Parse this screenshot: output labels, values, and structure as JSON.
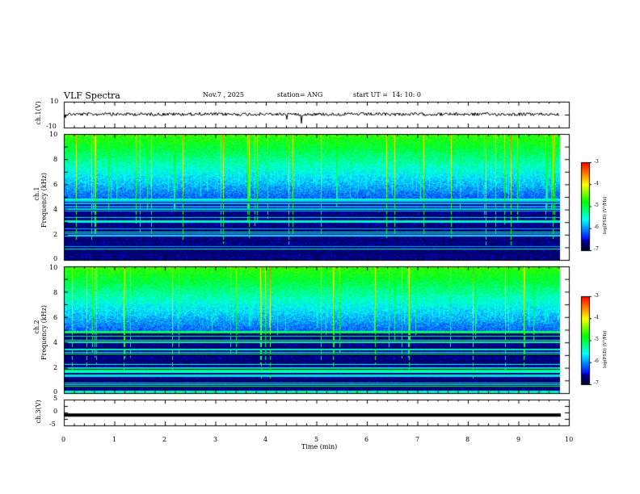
{
  "header": {
    "title": "VLF Spectra",
    "date": "Nov.7 , 2025",
    "station": "station= ANG",
    "start_ut": "start UT =  14: 10: 0"
  },
  "chart_data": [
    {
      "type": "line",
      "name": "ch1-waveform",
      "ylabel": "ch.1(V)",
      "ylim": [
        -10,
        10
      ],
      "yticks": [
        "10",
        "-10"
      ],
      "xlim": [
        0,
        10
      ],
      "baseline_v": 0,
      "noise_amplitude_v": 1
    },
    {
      "type": "heatmap",
      "name": "ch1-spectrogram",
      "ylabel_top": "ch.1",
      "ylabel": "Frequency (kHz)",
      "ylim": [
        0,
        10
      ],
      "yticks": [
        "0",
        "2",
        "4",
        "6",
        "8",
        "10"
      ],
      "xlim": [
        0,
        10
      ],
      "colorbar": {
        "label": "log(PSD) (V²/Hz)",
        "range": [
          -7,
          -3
        ],
        "ticks": [
          "-3",
          "-4",
          "-5",
          "-6",
          "-7"
        ]
      }
    },
    {
      "type": "heatmap",
      "name": "ch2-spectrogram",
      "ylabel_top": "ch.2",
      "ylabel": "Frequency (kHz)",
      "ylim": [
        0,
        10
      ],
      "yticks": [
        "0",
        "2",
        "4",
        "6",
        "8",
        "10"
      ],
      "xlim": [
        0,
        10
      ],
      "colorbar": {
        "label": "log(PSD) (V²/Hz)",
        "range": [
          -7,
          -3
        ],
        "ticks": [
          "-3",
          "-4",
          "-5",
          "-6",
          "-7"
        ]
      }
    },
    {
      "type": "line",
      "name": "ch3-waveform",
      "ylabel": "ch.3(V)",
      "ylim": [
        -5,
        5
      ],
      "yticks": [
        "5",
        "0",
        "-5"
      ],
      "xlim": [
        0,
        10
      ],
      "baseline_v": -1
    }
  ],
  "xaxis": {
    "label": "Time (min)",
    "ticks": [
      "0",
      "1",
      "2",
      "3",
      "4",
      "5",
      "6",
      "7",
      "8",
      "9",
      "10"
    ]
  },
  "colors": {
    "ink": "#000000",
    "colormap": [
      "#000033",
      "#000090",
      "#0000ff",
      "#00ffff",
      "#00ff00",
      "#ffff00",
      "#ff0000"
    ]
  }
}
